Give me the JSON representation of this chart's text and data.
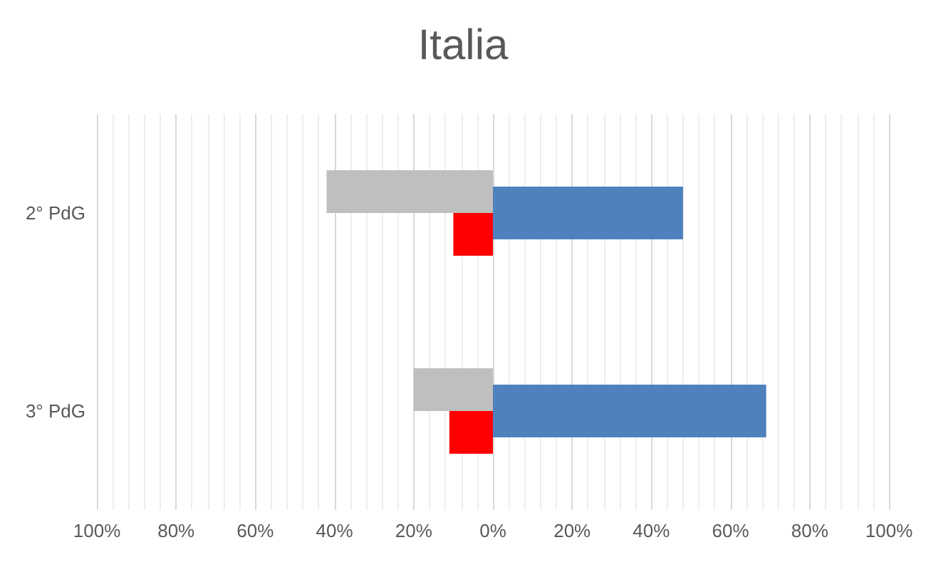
{
  "chart_data": {
    "type": "bar",
    "orientation": "horizontal",
    "title": "Italia",
    "categories": [
      "2° PdG",
      "3° PdG"
    ],
    "series": [
      {
        "color": "#bfbfbf",
        "values": [
          -42,
          -20
        ]
      },
      {
        "color": "#ff0000",
        "values": [
          -10,
          -11
        ]
      },
      {
        "color": "#4f81bd",
        "values": [
          48,
          69
        ]
      }
    ],
    "xlim": [
      -100,
      100
    ],
    "xticks": [
      {
        "value": -100,
        "label": "100%"
      },
      {
        "value": -80,
        "label": "80%"
      },
      {
        "value": -60,
        "label": "60%"
      },
      {
        "value": -40,
        "label": "40%"
      },
      {
        "value": -20,
        "label": "20%"
      },
      {
        "value": 0,
        "label": "0%"
      },
      {
        "value": 20,
        "label": "20%"
      },
      {
        "value": 40,
        "label": "40%"
      },
      {
        "value": 60,
        "label": "60%"
      },
      {
        "value": 80,
        "label": "80%"
      },
      {
        "value": 100,
        "label": "100%"
      }
    ],
    "grid": true
  }
}
